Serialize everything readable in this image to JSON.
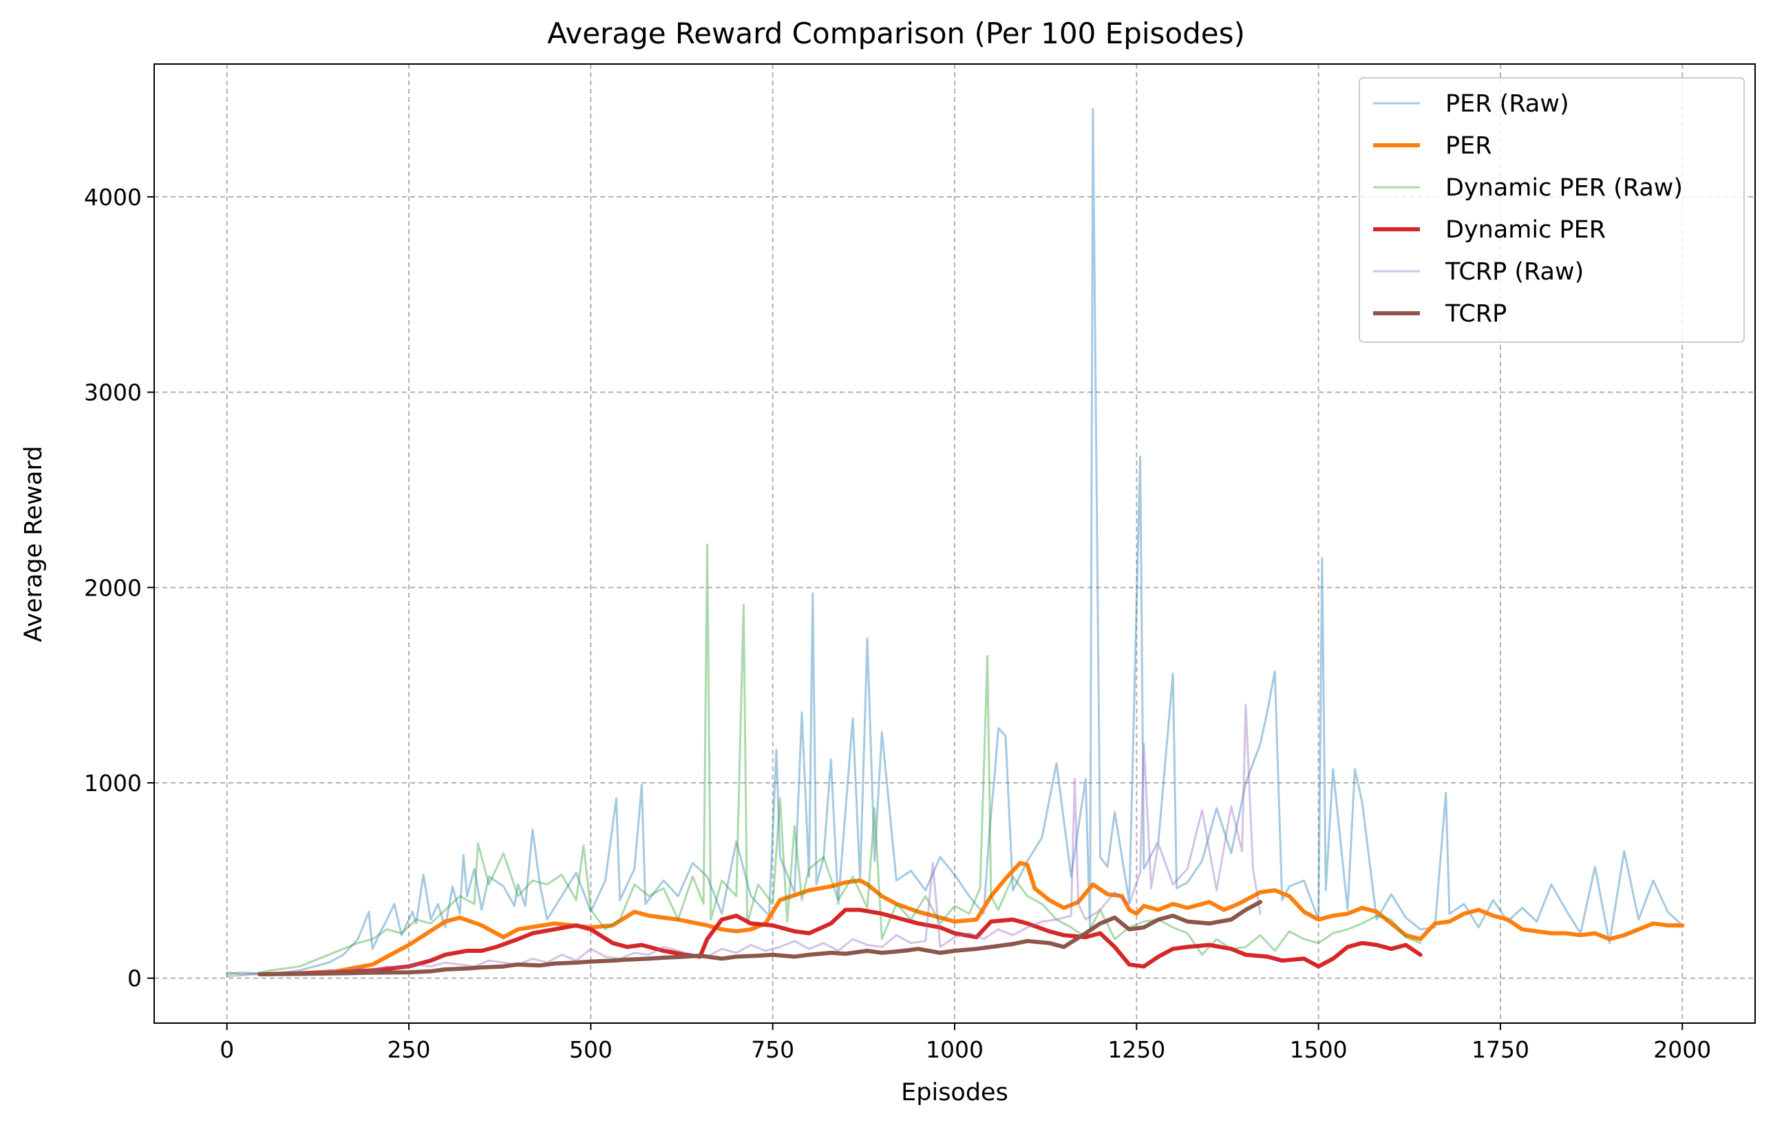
{
  "chart_data": {
    "type": "line",
    "title": "Average Reward Comparison (Per 100 Episodes)",
    "xlabel": "Episodes",
    "ylabel": "Average Reward",
    "xlim": [
      -100,
      2100
    ],
    "ylim": [
      -230,
      4680
    ],
    "x_ticks": [
      0,
      250,
      500,
      750,
      1000,
      1250,
      1500,
      1750,
      2000
    ],
    "y_ticks": [
      0,
      1000,
      2000,
      3000,
      4000
    ],
    "grid": true,
    "legend_position": "top-right",
    "series": [
      {
        "name": "PER (Raw)",
        "color": "#1f77b4",
        "opacity": 0.4,
        "width": 3,
        "raw": true,
        "x": [
          0,
          20,
          40,
          60,
          80,
          100,
          120,
          140,
          160,
          180,
          195,
          200,
          210,
          220,
          230,
          240,
          255,
          260,
          270,
          280,
          290,
          300,
          310,
          320,
          325,
          330,
          340,
          350,
          360,
          380,
          395,
          400,
          410,
          420,
          430,
          440,
          460,
          480,
          500,
          520,
          535,
          540,
          560,
          570,
          575,
          600,
          620,
          640,
          660,
          680,
          700,
          720,
          745,
          755,
          760,
          780,
          790,
          800,
          805,
          810,
          820,
          830,
          840,
          860,
          870,
          880,
          890,
          900,
          920,
          940,
          960,
          980,
          1000,
          1020,
          1040,
          1048,
          1055,
          1060,
          1070,
          1080,
          1100,
          1120,
          1140,
          1160,
          1180,
          1186,
          1190,
          1200,
          1210,
          1220,
          1240,
          1255,
          1260,
          1280,
          1300,
          1305,
          1320,
          1340,
          1360,
          1380,
          1400,
          1420,
          1430,
          1440,
          1450,
          1460,
          1480,
          1500,
          1505,
          1510,
          1520,
          1540,
          1550,
          1560,
          1580,
          1600,
          1620,
          1640,
          1660,
          1675,
          1680,
          1700,
          1720,
          1740,
          1760,
          1780,
          1800,
          1820,
          1840,
          1860,
          1880,
          1900,
          1920,
          1940,
          1960,
          1980,
          2000
        ],
        "values": [
          30,
          20,
          25,
          15,
          30,
          40,
          60,
          80,
          120,
          200,
          340,
          150,
          230,
          300,
          380,
          220,
          340,
          280,
          530,
          300,
          380,
          260,
          470,
          330,
          630,
          420,
          560,
          350,
          520,
          470,
          370,
          480,
          370,
          760,
          480,
          300,
          420,
          540,
          340,
          500,
          920,
          400,
          560,
          990,
          380,
          500,
          420,
          590,
          520,
          330,
          700,
          420,
          320,
          1170,
          620,
          440,
          1360,
          520,
          1970,
          480,
          620,
          1120,
          380,
          1330,
          500,
          1740,
          600,
          1260,
          500,
          550,
          450,
          620,
          530,
          420,
          330,
          760,
          1040,
          1280,
          1240,
          450,
          600,
          720,
          1100,
          520,
          1020,
          250,
          4450,
          620,
          570,
          850,
          390,
          2670,
          560,
          700,
          1560,
          460,
          490,
          600,
          870,
          640,
          1000,
          1200,
          1370,
          1570,
          400,
          470,
          500,
          300,
          2150,
          450,
          1070,
          350,
          1070,
          900,
          300,
          430,
          310,
          250,
          260,
          950,
          330,
          380,
          260,
          400,
          290,
          360,
          290,
          480,
          350,
          230,
          570,
          180,
          650,
          300,
          500,
          340,
          270
        ]
      },
      {
        "name": "PER",
        "color": "#ff7f0e",
        "opacity": 1,
        "width": 6,
        "raw": false,
        "x": [
          45,
          100,
          150,
          200,
          250,
          300,
          320,
          350,
          380,
          400,
          450,
          500,
          530,
          560,
          580,
          620,
          660,
          680,
          700,
          720,
          740,
          760,
          800,
          830,
          850,
          870,
          880,
          900,
          920,
          950,
          980,
          1000,
          1030,
          1050,
          1070,
          1090,
          1100,
          1110,
          1130,
          1150,
          1170,
          1190,
          1210,
          1230,
          1240,
          1250,
          1260,
          1280,
          1300,
          1320,
          1350,
          1370,
          1390,
          1410,
          1420,
          1440,
          1460,
          1480,
          1500,
          1520,
          1540,
          1560,
          1580,
          1600,
          1620,
          1640,
          1660,
          1680,
          1700,
          1720,
          1740,
          1760,
          1780,
          1800,
          1820,
          1840,
          1860,
          1880,
          1900,
          1920,
          1940,
          1960,
          1980,
          2000
        ],
        "values": [
          20,
          25,
          35,
          70,
          170,
          290,
          310,
          270,
          210,
          250,
          280,
          260,
          270,
          340,
          320,
          300,
          270,
          250,
          240,
          250,
          280,
          400,
          450,
          470,
          490,
          500,
          480,
          420,
          380,
          340,
          310,
          290,
          300,
          420,
          510,
          590,
          580,
          460,
          400,
          360,
          390,
          480,
          430,
          420,
          350,
          330,
          370,
          350,
          380,
          360,
          390,
          350,
          380,
          420,
          440,
          450,
          420,
          340,
          300,
          320,
          330,
          360,
          340,
          280,
          220,
          200,
          280,
          290,
          330,
          350,
          320,
          300,
          250,
          240,
          230,
          230,
          220,
          230,
          200,
          220,
          250,
          280,
          270,
          270
        ]
      },
      {
        "name": "Dynamic PER (Raw)",
        "color": "#2ca02c",
        "opacity": 0.4,
        "width": 3,
        "raw": true,
        "x": [
          0,
          20,
          40,
          60,
          80,
          100,
          120,
          140,
          160,
          180,
          200,
          220,
          240,
          260,
          280,
          300,
          320,
          340,
          345,
          360,
          380,
          400,
          420,
          440,
          460,
          480,
          490,
          500,
          520,
          540,
          560,
          580,
          600,
          620,
          640,
          655,
          660,
          665,
          680,
          700,
          710,
          715,
          730,
          750,
          760,
          770,
          780,
          790,
          800,
          820,
          840,
          860,
          880,
          890,
          900,
          920,
          940,
          960,
          980,
          1000,
          1020,
          1035,
          1045,
          1050,
          1060,
          1080,
          1100,
          1120,
          1140,
          1160,
          1180,
          1200,
          1220,
          1240,
          1260,
          1280,
          1300,
          1320,
          1340,
          1360,
          1380,
          1400,
          1420,
          1440,
          1460,
          1480,
          1500,
          1520,
          1540,
          1560,
          1580,
          1600,
          1620,
          1640
        ],
        "values": [
          20,
          30,
          25,
          40,
          50,
          60,
          90,
          120,
          150,
          180,
          200,
          250,
          230,
          300,
          280,
          350,
          420,
          380,
          690,
          480,
          640,
          420,
          500,
          480,
          530,
          400,
          680,
          350,
          250,
          300,
          480,
          420,
          460,
          300,
          520,
          380,
          2220,
          300,
          500,
          420,
          1910,
          280,
          480,
          380,
          920,
          290,
          780,
          400,
          560,
          620,
          400,
          520,
          360,
          870,
          200,
          380,
          300,
          420,
          280,
          370,
          330,
          460,
          1650,
          420,
          350,
          520,
          420,
          380,
          300,
          260,
          210,
          350,
          200,
          260,
          290,
          300,
          260,
          230,
          120,
          200,
          150,
          160,
          220,
          140,
          240,
          200,
          180,
          230,
          250,
          280,
          320,
          300,
          210,
          180
        ]
      },
      {
        "name": "Dynamic PER",
        "color": "#d62728",
        "opacity": 1,
        "width": 6,
        "raw": false,
        "x": [
          45,
          100,
          150,
          200,
          250,
          280,
          300,
          330,
          350,
          370,
          400,
          420,
          450,
          480,
          500,
          530,
          550,
          570,
          600,
          630,
          650,
          660,
          680,
          700,
          720,
          750,
          780,
          800,
          830,
          850,
          870,
          900,
          930,
          950,
          980,
          1000,
          1030,
          1050,
          1080,
          1100,
          1130,
          1150,
          1180,
          1200,
          1220,
          1240,
          1260,
          1280,
          1300,
          1320,
          1350,
          1380,
          1400,
          1430,
          1450,
          1480,
          1500,
          1520,
          1540,
          1560,
          1580,
          1600,
          1620,
          1640
        ],
        "values": [
          20,
          25,
          30,
          40,
          60,
          90,
          120,
          140,
          140,
          160,
          200,
          230,
          250,
          270,
          250,
          180,
          160,
          170,
          140,
          120,
          110,
          200,
          300,
          320,
          280,
          270,
          240,
          230,
          280,
          350,
          350,
          330,
          300,
          280,
          260,
          230,
          210,
          290,
          300,
          280,
          240,
          220,
          210,
          230,
          160,
          70,
          60,
          110,
          150,
          160,
          170,
          150,
          120,
          110,
          90,
          100,
          60,
          100,
          160,
          180,
          170,
          150,
          170,
          120
        ]
      },
      {
        "name": "TCRP (Raw)",
        "color": "#9467bd",
        "opacity": 0.4,
        "width": 3,
        "raw": true,
        "x": [
          0,
          20,
          40,
          60,
          80,
          100,
          120,
          140,
          160,
          180,
          200,
          220,
          240,
          260,
          280,
          300,
          320,
          340,
          360,
          380,
          400,
          420,
          440,
          460,
          480,
          500,
          520,
          540,
          560,
          580,
          600,
          620,
          640,
          660,
          680,
          700,
          720,
          740,
          760,
          780,
          800,
          820,
          840,
          860,
          880,
          900,
          920,
          940,
          960,
          970,
          980,
          1000,
          1020,
          1040,
          1060,
          1080,
          1100,
          1120,
          1140,
          1160,
          1165,
          1170,
          1180,
          1200,
          1220,
          1240,
          1255,
          1260,
          1270,
          1280,
          1300,
          1320,
          1340,
          1360,
          1380,
          1395,
          1400,
          1410,
          1420
        ],
        "values": [
          10,
          15,
          20,
          15,
          25,
          30,
          20,
          40,
          30,
          50,
          40,
          60,
          50,
          70,
          60,
          80,
          70,
          60,
          90,
          80,
          70,
          100,
          80,
          120,
          90,
          150,
          110,
          100,
          130,
          120,
          160,
          140,
          120,
          110,
          150,
          130,
          170,
          140,
          160,
          190,
          150,
          180,
          140,
          200,
          170,
          160,
          220,
          180,
          190,
          590,
          160,
          210,
          230,
          200,
          250,
          220,
          260,
          290,
          300,
          320,
          1020,
          380,
          300,
          350,
          440,
          380,
          540,
          1200,
          460,
          690,
          480,
          560,
          860,
          450,
          880,
          650,
          1400,
          560,
          330
        ]
      },
      {
        "name": "TCRP",
        "color": "#8c564b",
        "opacity": 1,
        "width": 6,
        "raw": false,
        "x": [
          45,
          100,
          150,
          200,
          250,
          280,
          300,
          330,
          350,
          380,
          400,
          430,
          450,
          480,
          500,
          530,
          550,
          580,
          600,
          630,
          650,
          680,
          700,
          730,
          750,
          780,
          800,
          830,
          850,
          880,
          900,
          930,
          950,
          980,
          1000,
          1030,
          1050,
          1080,
          1100,
          1130,
          1150,
          1180,
          1200,
          1220,
          1240,
          1260,
          1280,
          1300,
          1320,
          1350,
          1380,
          1400,
          1420
        ],
        "values": [
          20,
          22,
          25,
          28,
          30,
          35,
          45,
          50,
          55,
          60,
          70,
          65,
          75,
          80,
          85,
          90,
          95,
          100,
          105,
          110,
          115,
          100,
          110,
          115,
          120,
          110,
          120,
          130,
          125,
          140,
          130,
          140,
          150,
          130,
          140,
          150,
          160,
          175,
          190,
          180,
          160,
          230,
          280,
          310,
          250,
          260,
          300,
          320,
          290,
          280,
          300,
          350,
          390
        ]
      }
    ]
  }
}
